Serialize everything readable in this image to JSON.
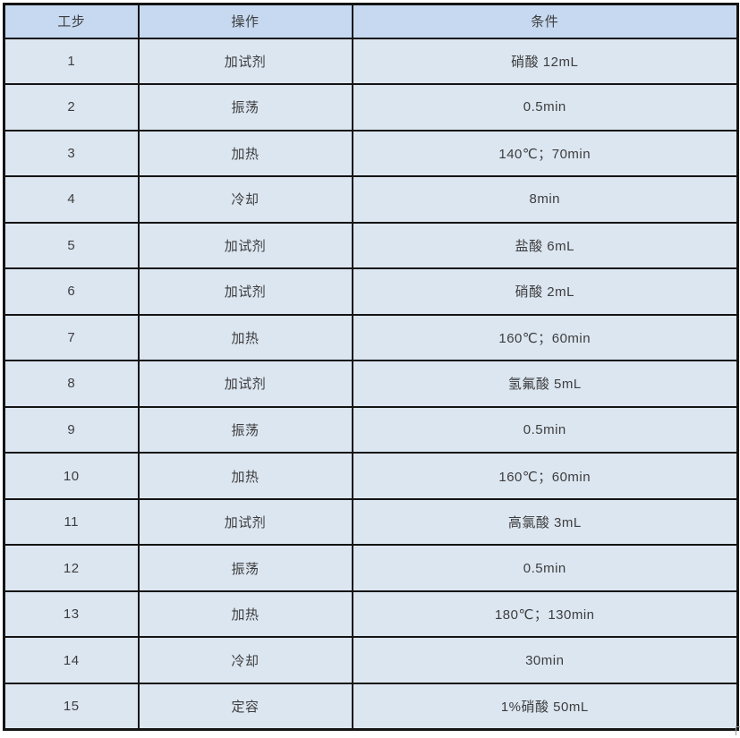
{
  "table": {
    "columns": [
      {
        "key": "step",
        "label": "工步"
      },
      {
        "key": "operation",
        "label": "操作"
      },
      {
        "key": "condition",
        "label": "条件"
      }
    ],
    "rows": [
      {
        "step": "1",
        "operation": "加试剂",
        "condition": "硝酸 12mL"
      },
      {
        "step": "2",
        "operation": "振荡",
        "condition": "0.5min"
      },
      {
        "step": "3",
        "operation": "加热",
        "condition": "140℃；70min"
      },
      {
        "step": "4",
        "operation": "冷却",
        "condition": "8min"
      },
      {
        "step": "5",
        "operation": "加试剂",
        "condition": "盐酸 6mL"
      },
      {
        "step": "6",
        "operation": "加试剂",
        "condition": "硝酸 2mL"
      },
      {
        "step": "7",
        "operation": "加热",
        "condition": "160℃；60min"
      },
      {
        "step": "8",
        "operation": "加试剂",
        "condition": "氢氟酸 5mL"
      },
      {
        "step": "9",
        "operation": "振荡",
        "condition": "0.5min"
      },
      {
        "step": "10",
        "operation": "加热",
        "condition": "160℃；60min"
      },
      {
        "step": "11",
        "operation": "加试剂",
        "condition": "高氯酸 3mL"
      },
      {
        "step": "12",
        "operation": "振荡",
        "condition": "0.5min"
      },
      {
        "step": "13",
        "operation": "加热",
        "condition": "180℃；130min"
      },
      {
        "step": "14",
        "operation": "冷却",
        "condition": "30min"
      },
      {
        "step": "15",
        "operation": "定容",
        "condition": "1%硝酸 50mL"
      }
    ],
    "colors": {
      "header_bg": "#c6d9f1",
      "row_bg": "#dce6f1",
      "border": "#141414",
      "text": "#3d3d3d"
    }
  }
}
